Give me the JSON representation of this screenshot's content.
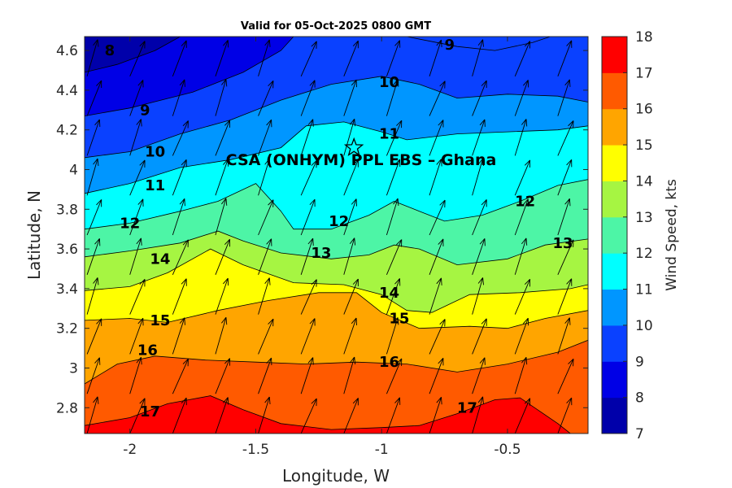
{
  "chart_data": {
    "type": "filled-contour",
    "title": "Valid for 05-Oct-2025 0800 GMT",
    "xlabel": "Longitude, W",
    "ylabel": "Latitude, N",
    "xlim": [
      -2.18,
      -0.18
    ],
    "ylim": [
      2.67,
      4.67
    ],
    "xticks": [
      -2,
      -1.5,
      -1,
      -0.5
    ],
    "xtick_labels": [
      "-2",
      "-1.5",
      "-1",
      "-0.5"
    ],
    "yticks": [
      2.8,
      3,
      3.2,
      3.4,
      3.6,
      3.8,
      4,
      4.2,
      4.4,
      4.6
    ],
    "ytick_labels": [
      "2.8",
      "3",
      "3.2",
      "3.4",
      "3.6",
      "3.8",
      "4",
      "4.2",
      "4.4",
      "4.6"
    ],
    "colorbar": {
      "label": "Wind Speed, kts",
      "range": [
        7,
        18
      ],
      "ticks": [
        7,
        8,
        9,
        10,
        11,
        12,
        13,
        14,
        15,
        16,
        17,
        18
      ],
      "tick_labels": [
        "7",
        "8",
        "9",
        "10",
        "11",
        "12",
        "13",
        "14",
        "15",
        "16",
        "17",
        "18"
      ],
      "colors": [
        "#0000aa",
        "#0000e6",
        "#0a41ff",
        "#0096ff",
        "#00ffff",
        "#4df5a6",
        "#a6f542",
        "#ffff00",
        "#ffa500",
        "#ff5a00",
        "#ff0000"
      ]
    },
    "wind_direction": "from south-southwest (arrows point to NNE)",
    "site": {
      "name": "CSA (ONHYM) PPL EBS  – Ghana",
      "lon": -1.11,
      "lat": 4.11,
      "marker": "star"
    },
    "contours": [
      {
        "level": 8,
        "points": [
          [
            -2.18,
            4.49
          ],
          [
            -2.05,
            4.53
          ],
          [
            -1.9,
            4.6
          ],
          [
            -1.8,
            4.67
          ]
        ]
      },
      {
        "level": 9,
        "points": [
          [
            -2.18,
            4.27
          ],
          [
            -2.0,
            4.31
          ],
          [
            -1.75,
            4.39
          ],
          [
            -1.55,
            4.49
          ],
          [
            -1.4,
            4.6
          ],
          [
            -1.35,
            4.67
          ]
        ]
      },
      {
        "level": 9,
        "points": [
          [
            -0.9,
            4.67
          ],
          [
            -0.7,
            4.62
          ],
          [
            -0.55,
            4.6
          ],
          [
            -0.4,
            4.64
          ],
          [
            -0.33,
            4.67
          ]
        ]
      },
      {
        "level": 10,
        "points": [
          [
            -2.18,
            4.06
          ],
          [
            -2.0,
            4.09
          ],
          [
            -1.8,
            4.18
          ],
          [
            -1.6,
            4.25
          ],
          [
            -1.4,
            4.35
          ],
          [
            -1.2,
            4.43
          ],
          [
            -1.0,
            4.47
          ],
          [
            -0.85,
            4.43
          ],
          [
            -0.7,
            4.36
          ],
          [
            -0.5,
            4.38
          ],
          [
            -0.3,
            4.37
          ],
          [
            -0.18,
            4.34
          ]
        ]
      },
      {
        "level": 11,
        "points": [
          [
            -2.18,
            3.88
          ],
          [
            -2.0,
            3.93
          ],
          [
            -1.8,
            4.01
          ],
          [
            -1.6,
            4.05
          ],
          [
            -1.4,
            4.11
          ],
          [
            -1.3,
            4.22
          ],
          [
            -1.15,
            4.24
          ],
          [
            -1.0,
            4.19
          ],
          [
            -0.9,
            4.15
          ],
          [
            -0.7,
            4.18
          ],
          [
            -0.5,
            4.19
          ],
          [
            -0.3,
            4.2
          ],
          [
            -0.18,
            4.22
          ]
        ]
      },
      {
        "level": 12,
        "points": [
          [
            -2.18,
            3.7
          ],
          [
            -2.0,
            3.73
          ],
          [
            -1.8,
            3.79
          ],
          [
            -1.65,
            3.84
          ],
          [
            -1.5,
            3.93
          ],
          [
            -1.4,
            3.79
          ],
          [
            -1.35,
            3.7
          ],
          [
            -1.2,
            3.7
          ],
          [
            -1.05,
            3.77
          ],
          [
            -0.95,
            3.84
          ],
          [
            -0.85,
            3.79
          ],
          [
            -0.75,
            3.74
          ],
          [
            -0.6,
            3.77
          ],
          [
            -0.45,
            3.84
          ],
          [
            -0.3,
            3.92
          ],
          [
            -0.18,
            3.95
          ]
        ]
      },
      {
        "level": 13,
        "points": [
          [
            -2.18,
            3.56
          ],
          [
            -2.0,
            3.59
          ],
          [
            -1.8,
            3.63
          ],
          [
            -1.65,
            3.69
          ],
          [
            -1.55,
            3.64
          ],
          [
            -1.4,
            3.58
          ],
          [
            -1.2,
            3.55
          ],
          [
            -1.05,
            3.57
          ],
          [
            -0.95,
            3.62
          ],
          [
            -0.85,
            3.6
          ],
          [
            -0.7,
            3.52
          ],
          [
            -0.5,
            3.55
          ],
          [
            -0.35,
            3.62
          ],
          [
            -0.18,
            3.65
          ]
        ]
      },
      {
        "level": 14,
        "points": [
          [
            -2.18,
            3.39
          ],
          [
            -2.0,
            3.41
          ],
          [
            -1.85,
            3.48
          ],
          [
            -1.68,
            3.6
          ],
          [
            -1.55,
            3.52
          ],
          [
            -1.35,
            3.43
          ],
          [
            -1.15,
            3.42
          ],
          [
            -1.0,
            3.37
          ],
          [
            -0.9,
            3.29
          ],
          [
            -0.8,
            3.28
          ],
          [
            -0.65,
            3.37
          ],
          [
            -0.45,
            3.38
          ],
          [
            -0.25,
            3.4
          ],
          [
            -0.18,
            3.42
          ]
        ]
      },
      {
        "level": 15,
        "points": [
          [
            -2.18,
            3.24
          ],
          [
            -2.0,
            3.25
          ],
          [
            -1.85,
            3.23
          ],
          [
            -1.65,
            3.29
          ],
          [
            -1.45,
            3.34
          ],
          [
            -1.25,
            3.38
          ],
          [
            -1.1,
            3.38
          ],
          [
            -1.0,
            3.28
          ],
          [
            -0.85,
            3.2
          ],
          [
            -0.65,
            3.21
          ],
          [
            -0.5,
            3.2
          ],
          [
            -0.35,
            3.25
          ],
          [
            -0.18,
            3.29
          ]
        ]
      },
      {
        "level": 16,
        "points": [
          [
            -2.18,
            2.92
          ],
          [
            -2.05,
            3.02
          ],
          [
            -1.9,
            3.06
          ],
          [
            -1.7,
            3.04
          ],
          [
            -1.5,
            3.03
          ],
          [
            -1.3,
            3.02
          ],
          [
            -1.1,
            3.03
          ],
          [
            -0.9,
            3.02
          ],
          [
            -0.7,
            2.98
          ],
          [
            -0.5,
            3.02
          ],
          [
            -0.3,
            3.08
          ],
          [
            -0.18,
            3.14
          ]
        ]
      },
      {
        "level": 17,
        "points": [
          [
            -2.18,
            2.71
          ],
          [
            -2.0,
            2.75
          ],
          [
            -1.85,
            2.82
          ],
          [
            -1.68,
            2.86
          ],
          [
            -1.55,
            2.79
          ],
          [
            -1.4,
            2.72
          ],
          [
            -1.2,
            2.69
          ],
          [
            -1.0,
            2.7
          ],
          [
            -0.85,
            2.71
          ],
          [
            -0.7,
            2.77
          ],
          [
            -0.55,
            2.84
          ],
          [
            -0.45,
            2.85
          ],
          [
            -0.3,
            2.72
          ],
          [
            -0.25,
            2.67
          ]
        ]
      }
    ],
    "contour_labels": [
      {
        "text": "8",
        "lon": -2.08,
        "lat": 4.6
      },
      {
        "text": "9",
        "lon": -0.73,
        "lat": 4.63
      },
      {
        "text": "9",
        "lon": -1.94,
        "lat": 4.3
      },
      {
        "text": "10",
        "lon": -0.97,
        "lat": 4.44
      },
      {
        "text": "10",
        "lon": -1.9,
        "lat": 4.09
      },
      {
        "text": "11",
        "lon": -0.97,
        "lat": 4.18
      },
      {
        "text": "11",
        "lon": -1.9,
        "lat": 3.92
      },
      {
        "text": "12",
        "lon": -1.17,
        "lat": 3.74
      },
      {
        "text": "12",
        "lon": -0.43,
        "lat": 3.84
      },
      {
        "text": "12",
        "lon": -2.0,
        "lat": 3.73
      },
      {
        "text": "13",
        "lon": -1.24,
        "lat": 3.58
      },
      {
        "text": "13",
        "lon": -0.28,
        "lat": 3.63
      },
      {
        "text": "14",
        "lon": -1.88,
        "lat": 3.55
      },
      {
        "text": "14",
        "lon": -0.97,
        "lat": 3.38
      },
      {
        "text": "15",
        "lon": -1.88,
        "lat": 3.24
      },
      {
        "text": "15",
        "lon": -0.93,
        "lat": 3.25
      },
      {
        "text": "16",
        "lon": -1.93,
        "lat": 3.09
      },
      {
        "text": "16",
        "lon": -0.97,
        "lat": 3.03
      },
      {
        "text": "17",
        "lon": -1.92,
        "lat": 2.78
      },
      {
        "text": "17",
        "lon": -0.66,
        "lat": 2.8
      }
    ]
  }
}
